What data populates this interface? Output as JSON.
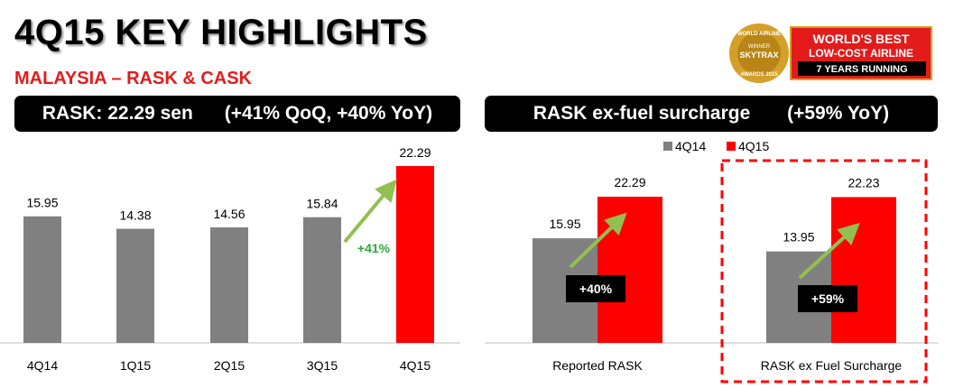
{
  "page": {
    "title": "4Q15 KEY HIGHLIGHTS",
    "subtitle": "MALAYSIA – RASK & CASK"
  },
  "badge": {
    "seal_lines": [
      "WORLD AIRLINE",
      "WINNER",
      "SKYTRAX",
      "AWARDS 2015"
    ],
    "line1": "WORLD'S BEST",
    "line2": "LOW-COST AIRLINE",
    "line3": "7 YEARS RUNNING",
    "colors": {
      "red": "#e31b1b",
      "gold": "#d4a02a",
      "black": "#000000"
    }
  },
  "left_panel": {
    "header": "RASK: 22.29 sen      (+41% QoQ, +40% YoY)",
    "annotation": "+41%"
  },
  "right_panel": {
    "header": "RASK ex-fuel surcharge       (+59% YoY)",
    "legend": [
      "4Q14",
      "4Q15"
    ],
    "annotation_reported": "+40%",
    "annotation_exfuel": "+59%"
  },
  "colors": {
    "grey": "#808080",
    "red": "#ff0000",
    "arrow": "#92c050",
    "green_text": "#2eaa3c",
    "dashed_box": "#ff0000"
  },
  "chart_data": [
    {
      "type": "bar",
      "title": "RASK: 22.29 sen      (+41% QoQ, +40% YoY)",
      "categories": [
        "4Q14",
        "1Q15",
        "2Q15",
        "3Q15",
        "4Q15"
      ],
      "values": [
        15.95,
        14.38,
        14.56,
        15.84,
        22.29
      ],
      "value_labels": [
        "15.95",
        "14.38",
        "14.56",
        "15.84",
        "22.29"
      ],
      "bar_colors": [
        "#808080",
        "#808080",
        "#808080",
        "#808080",
        "#ff0000"
      ],
      "ylim": [
        0,
        25
      ],
      "grid": false,
      "annotations": [
        "+41%"
      ]
    },
    {
      "type": "bar",
      "title": "RASK ex-fuel surcharge       (+59% YoY)",
      "categories": [
        "Reported RASK",
        "RASK ex Fuel Surcharge"
      ],
      "series": [
        {
          "name": "4Q14",
          "values": [
            15.95,
            13.95
          ],
          "labels": [
            "15.95",
            "13.95"
          ],
          "color": "#808080"
        },
        {
          "name": "4Q15",
          "values": [
            22.29,
            22.23
          ],
          "labels": [
            "22.29",
            "22.23"
          ],
          "color": "#ff0000"
        }
      ],
      "ylim": [
        0,
        25
      ],
      "grid": false,
      "legend": "top",
      "annotations": [
        "+40%",
        "+59%"
      ]
    }
  ]
}
